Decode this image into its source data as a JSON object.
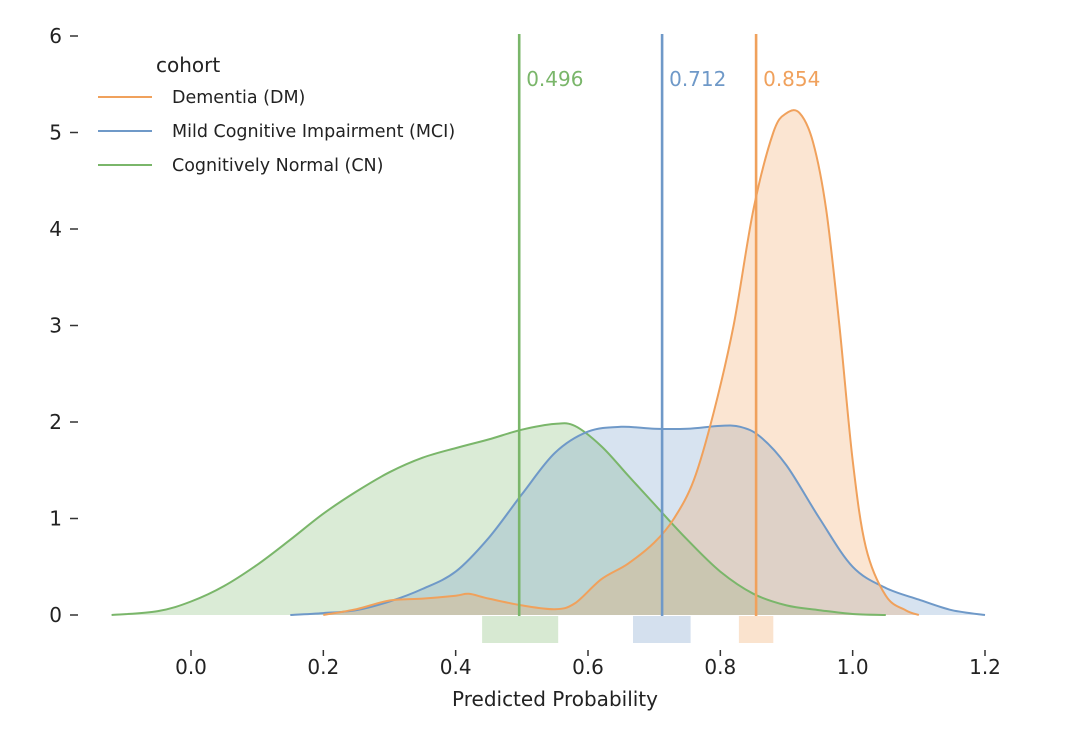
{
  "chart_data": {
    "type": "area",
    "xlabel": "Predicted Probability",
    "ylabel": "",
    "xlim": [
      -0.12,
      1.22
    ],
    "ylim": [
      0,
      6
    ],
    "x_ticks": [
      0.0,
      0.2,
      0.4,
      0.6,
      0.8,
      1.0,
      1.2
    ],
    "x_tick_labels": [
      "0.0",
      "0.2",
      "0.4",
      "0.6",
      "0.8",
      "1.0",
      "1.2"
    ],
    "y_ticks": [
      0,
      1,
      2,
      3,
      4,
      5,
      6
    ],
    "y_tick_labels": [
      "0",
      "1",
      "2",
      "3",
      "4",
      "5",
      "6"
    ],
    "grid": false,
    "legend": {
      "title": "cohort",
      "placement": "top-left"
    },
    "series": [
      {
        "name": "Dementia (DM)",
        "color": "#f0a15c",
        "x": [
          0.2,
          0.25,
          0.3,
          0.35,
          0.4,
          0.42,
          0.45,
          0.5,
          0.55,
          0.58,
          0.62,
          0.66,
          0.7,
          0.73,
          0.76,
          0.79,
          0.82,
          0.85,
          0.88,
          0.9,
          0.92,
          0.94,
          0.96,
          0.98,
          1.0,
          1.02,
          1.05,
          1.08,
          1.1
        ],
        "y": [
          0.0,
          0.06,
          0.15,
          0.17,
          0.2,
          0.22,
          0.17,
          0.1,
          0.06,
          0.12,
          0.37,
          0.53,
          0.75,
          1.0,
          1.4,
          2.1,
          3.0,
          4.2,
          5.0,
          5.2,
          5.2,
          4.9,
          4.2,
          3.0,
          1.6,
          0.7,
          0.2,
          0.05,
          0.0
        ],
        "mean": 0.854,
        "mean_label": "0.854",
        "ci": [
          0.828,
          0.88
        ]
      },
      {
        "name": "Mild Cognitive Impairment (MCI)",
        "color": "#6f99c8",
        "x": [
          0.15,
          0.2,
          0.25,
          0.3,
          0.35,
          0.4,
          0.45,
          0.5,
          0.55,
          0.6,
          0.65,
          0.7,
          0.75,
          0.8,
          0.83,
          0.86,
          0.9,
          0.95,
          1.0,
          1.05,
          1.1,
          1.15,
          1.2
        ],
        "y": [
          0.0,
          0.02,
          0.05,
          0.14,
          0.27,
          0.45,
          0.8,
          1.25,
          1.68,
          1.9,
          1.95,
          1.93,
          1.93,
          1.96,
          1.95,
          1.85,
          1.55,
          1.0,
          0.5,
          0.28,
          0.16,
          0.05,
          0.0
        ],
        "mean": 0.712,
        "mean_label": "0.712",
        "ci": [
          0.668,
          0.755
        ]
      },
      {
        "name": "Cognitively Normal (CN)",
        "color": "#7ab66a",
        "x": [
          -0.12,
          -0.05,
          0.0,
          0.05,
          0.1,
          0.15,
          0.2,
          0.25,
          0.3,
          0.35,
          0.4,
          0.45,
          0.5,
          0.55,
          0.58,
          0.62,
          0.66,
          0.7,
          0.75,
          0.8,
          0.85,
          0.9,
          0.95,
          1.0,
          1.05
        ],
        "y": [
          0.0,
          0.04,
          0.14,
          0.3,
          0.52,
          0.78,
          1.05,
          1.28,
          1.48,
          1.63,
          1.73,
          1.82,
          1.92,
          1.98,
          1.96,
          1.75,
          1.45,
          1.15,
          0.78,
          0.45,
          0.22,
          0.1,
          0.05,
          0.01,
          0.0
        ],
        "mean": 0.496,
        "mean_label": "0.496",
        "ci": [
          0.44,
          0.555
        ]
      }
    ]
  }
}
